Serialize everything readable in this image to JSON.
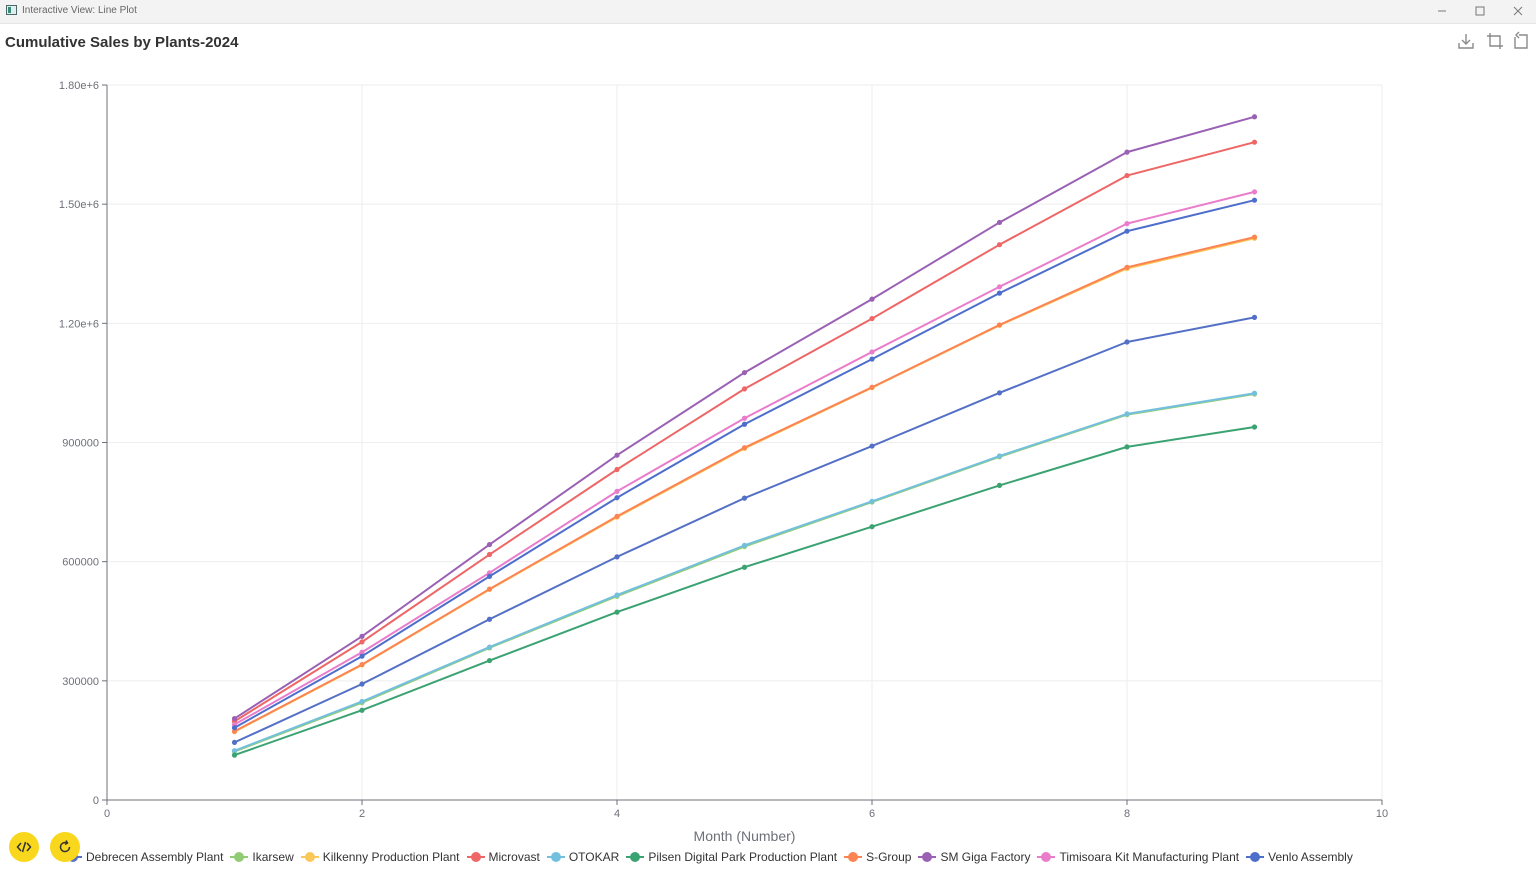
{
  "window": {
    "title": "Interactive View: Line Plot"
  },
  "colors": [
    "#5470c6",
    "#91cc75",
    "#fac858",
    "#ee6666",
    "#73c0de",
    "#3ba272",
    "#fc8452",
    "#9a60b4",
    "#ea7ccc",
    "#4e6ecc"
  ],
  "chart_data": {
    "type": "line",
    "title": "Cumulative Sales by Plants-2024",
    "xlabel": "Month (Number)",
    "ylabel": "",
    "xlim": [
      0,
      10
    ],
    "ylim": [
      0,
      1800000
    ],
    "xticks": [
      "0",
      "2",
      "4",
      "6",
      "8",
      "10"
    ],
    "xtick_values": [
      0,
      2,
      4,
      6,
      8,
      10
    ],
    "yticks": [
      "0",
      "300000",
      "600000",
      "900000",
      "1.20e+6",
      "1.50e+6",
      "1.80e+6"
    ],
    "ytick_values": [
      0,
      300000,
      600000,
      900000,
      1200000,
      1500000,
      1800000
    ],
    "grid": true,
    "legend_position": "bottom",
    "x": [
      1,
      2,
      3,
      4,
      5,
      6,
      7,
      8,
      9
    ],
    "series": [
      {
        "name": "Debrecen Assembly Plant",
        "values": [
          145000,
          292000,
          455000,
          612000,
          760000,
          891000,
          1025000,
          1153000,
          1215000
        ]
      },
      {
        "name": "Ikarsew",
        "values": [
          122000,
          245000,
          383000,
          513000,
          638000,
          750000,
          864000,
          970000,
          1022000
        ]
      },
      {
        "name": "Kilkenny Production Plant",
        "values": [
          172000,
          340000,
          530000,
          712000,
          885000,
          1038000,
          1195000,
          1338000,
          1414000
        ]
      },
      {
        "name": "Microvast",
        "values": [
          198000,
          398000,
          618000,
          832000,
          1035000,
          1212000,
          1398000,
          1572000,
          1656000
        ]
      },
      {
        "name": "OTOKAR",
        "values": [
          124000,
          248000,
          385000,
          516000,
          641000,
          752000,
          866000,
          972000,
          1024000
        ]
      },
      {
        "name": "Pilsen Digital Park Production Plant",
        "values": [
          113000,
          226000,
          351000,
          473000,
          586000,
          688000,
          792000,
          889000,
          939000
        ]
      },
      {
        "name": "S-Group",
        "values": [
          173000,
          341000,
          531000,
          714000,
          887000,
          1039000,
          1196000,
          1341000,
          1417000
        ]
      },
      {
        "name": "SM Giga Factory",
        "values": [
          205000,
          412000,
          643000,
          868000,
          1076000,
          1261000,
          1454000,
          1631000,
          1720000
        ]
      },
      {
        "name": "Timisoara Kit Manufacturing Plant",
        "values": [
          190000,
          372000,
          572000,
          777000,
          961000,
          1128000,
          1292000,
          1451000,
          1531000
        ]
      },
      {
        "name": "Venlo Assembly",
        "values": [
          182000,
          362000,
          563000,
          761000,
          946000,
          1110000,
          1276000,
          1432000,
          1510000
        ]
      }
    ]
  }
}
